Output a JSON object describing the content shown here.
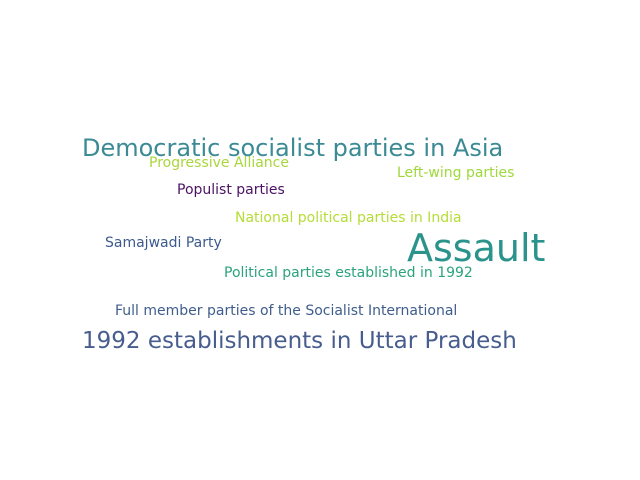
{
  "word_cloud": {
    "words": [
      {
        "text": "Democratic socialist parties in Asia",
        "color": "#3b8a94"
      },
      {
        "text": "Progressive Alliance",
        "color": "#a9d63c"
      },
      {
        "text": "Left-wing parties",
        "color": "#9ed93a"
      },
      {
        "text": "Populist parties",
        "color": "#4b1364"
      },
      {
        "text": "National political parties in India",
        "color": "#b5dc37"
      },
      {
        "text": "Samajwadi Party",
        "color": "#3d5a8e"
      },
      {
        "text": "Assault",
        "color": "#2a938c"
      },
      {
        "text": "Political parties established in 1992",
        "color": "#2aa37d"
      },
      {
        "text": "Full member parties of the Socialist International",
        "color": "#3f5d8c"
      },
      {
        "text": "1992 establishments in Uttar Pradesh",
        "color": "#475d8e"
      }
    ]
  }
}
